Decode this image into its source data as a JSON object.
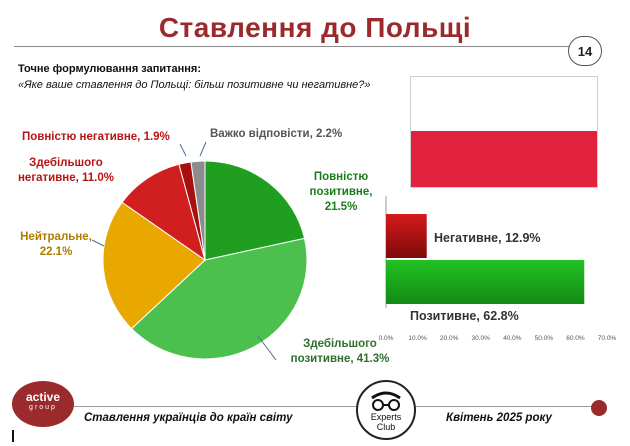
{
  "title": "Ставлення до Польщі",
  "page_number": "14",
  "question_label": "Точне формулювання запитання:",
  "question_text": "«Яке ваше ставлення до Польщі: більш позитивне чи негативне?»",
  "footer": {
    "logo_top": "active",
    "logo_bottom": "group",
    "left": "Ставлення українців до країн світу",
    "center_logo_1": "Experts",
    "center_logo_2": "Club",
    "right": "Квітень 2025 року"
  },
  "colors": {
    "accent": "#9b2a2c",
    "flag_red": "#e0223f"
  },
  "chart_data": [
    {
      "type": "pie",
      "slices": [
        {
          "label_lines": [
            "Повністю",
            "позитивне,",
            "21.5%"
          ],
          "value": 21.5,
          "color": "#1f9e1f"
        },
        {
          "label_lines": [
            "Здебільшого",
            "позитивне, 41.3%"
          ],
          "value": 41.3,
          "color": "#4cc04c"
        },
        {
          "label_lines": [
            "Нейтральне,",
            "22.1%"
          ],
          "value": 22.1,
          "color": "#e8a800"
        },
        {
          "label_lines": [
            "Здебільшого",
            "негативне, 11.0%"
          ],
          "value": 11.0,
          "color": "#d11f1f"
        },
        {
          "label_lines": [
            "Повністю негативне, 1.9%"
          ],
          "value": 1.9,
          "color": "#a80f0f"
        },
        {
          "label_lines": [
            "Важко відповісти, 2.2%"
          ],
          "value": 2.2,
          "color": "#8c8c8c"
        }
      ]
    },
    {
      "type": "bar",
      "orientation": "horizontal",
      "categories": [
        "Негативне",
        "Позитивне"
      ],
      "values": [
        12.9,
        62.8
      ],
      "labels": [
        "Негативне, 12.9%",
        "Позитивне, 62.8%"
      ],
      "colors": [
        "#b31414",
        "#19a619"
      ],
      "xlim": [
        0,
        70
      ],
      "ticks": [
        "0.0%",
        "10.0%",
        "20.0%",
        "30.0%",
        "40.0%",
        "50.0%",
        "60.0%",
        "70.0%"
      ]
    }
  ]
}
